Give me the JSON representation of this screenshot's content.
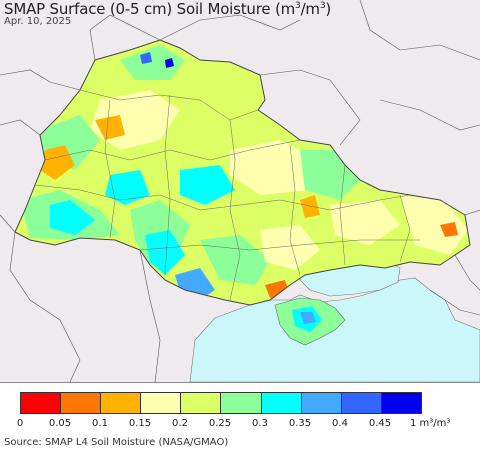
{
  "title": {
    "text": "SMAP Surface (0-5 cm) Soil Moisture (m",
    "sup1": "3",
    "mid": "/m",
    "sup2": "3",
    "end": ")"
  },
  "date": "Apr. 10, 2025",
  "source": "Source: SMAP L4 Soil Moisture (NASA/GMAO)",
  "legend": {
    "colors": [
      "#ff0000",
      "#ff7700",
      "#ffb300",
      "#ffffb0",
      "#ddff66",
      "#8cff99",
      "#00ffff",
      "#44aaff",
      "#3366ff",
      "#0000ee"
    ],
    "ticks": [
      "0",
      "0.05",
      "0.1",
      "0.15",
      "0.2",
      "0.25",
      "0.3",
      "0.35",
      "0.4",
      "0.45"
    ],
    "unit_label": "1 m³/m³"
  },
  "map": {
    "background_land": "#eeeaee",
    "sea_color": "#ccf7fa"
  }
}
